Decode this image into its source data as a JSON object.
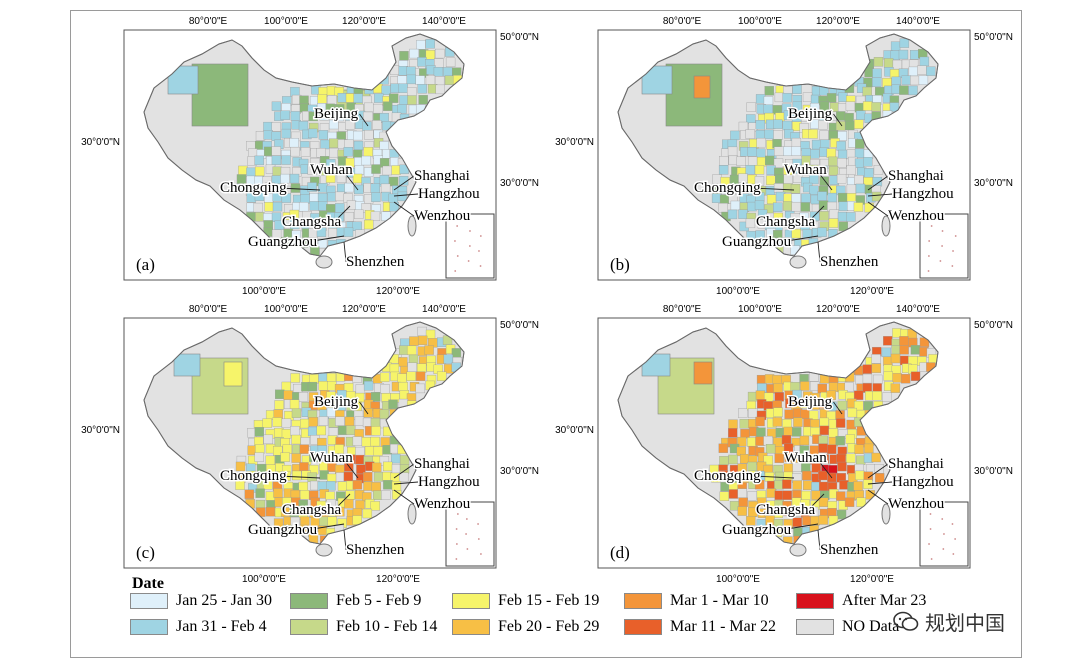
{
  "panels": [
    {
      "id": "a",
      "label": "(a)",
      "top_lon": [
        "80°0'0\"E",
        "100°0'0\"E",
        "120°0'0\"E",
        "140°0'0\"E"
      ],
      "bottom_lon": [
        "100°0'0\"E",
        "120°0'0\"E"
      ],
      "left_lat": "30°0'0\"N",
      "right_lat": [
        "50°0'0\"N",
        "30°0'0\"N"
      ]
    },
    {
      "id": "b",
      "label": "(b)",
      "top_lon": [
        "80°0'0\"E",
        "100°0'0\"E",
        "120°0'0\"E",
        "140°0'0\"E"
      ],
      "bottom_lon": [
        "100°0'0\"E",
        "120°0'0\"E"
      ],
      "left_lat": "30°0'0\"N",
      "right_lat": [
        "50°0'0\"N",
        "30°0'0\"N"
      ]
    },
    {
      "id": "c",
      "label": "(c)",
      "top_lon": [
        "80°0'0\"E",
        "100°0'0\"E",
        "120°0'0\"E",
        "140°0'0\"E"
      ],
      "bottom_lon": [
        "100°0'0\"E",
        "120°0'0\"E"
      ],
      "left_lat": "30°0'0\"N",
      "right_lat": [
        "50°0'0\"N",
        "30°0'0\"N"
      ]
    },
    {
      "id": "d",
      "label": "(d)",
      "top_lon": [
        "80°0'0\"E",
        "100°0'0\"E",
        "120°0'0\"E",
        "140°0'0\"E"
      ],
      "bottom_lon": [
        "100°0'0\"E",
        "120°0'0\"E"
      ],
      "left_lat": "30°0'0\"N",
      "right_lat": [
        "50°0'0\"N",
        "30°0'0\"N"
      ]
    }
  ],
  "cities": [
    "Beijing",
    "Wuhan",
    "Shanghai",
    "Chongqing",
    "Hangzhou",
    "Wenzhou",
    "Changsha",
    "Guangzhou",
    "Shenzhen"
  ],
  "legend": {
    "title": "Date",
    "items": [
      {
        "label": "Jan 25 - Jan 30",
        "color": "#dff0fa"
      },
      {
        "label": "Jan 31 - Feb 4",
        "color": "#9fd4e3"
      },
      {
        "label": "Feb 5 - Feb 9",
        "color": "#8cb87a"
      },
      {
        "label": "Feb 10 - Feb 14",
        "color": "#c6d98a"
      },
      {
        "label": "Feb 15 - Feb 19",
        "color": "#f6f46a"
      },
      {
        "label": "Feb 20 - Feb 29",
        "color": "#f7bf45"
      },
      {
        "label": "Mar 1  - Mar 10",
        "color": "#f3953a"
      },
      {
        "label": "Mar 11 - Mar 22",
        "color": "#e8602a"
      },
      {
        "label": "After Mar 23",
        "color": "#d8121c"
      },
      {
        "label": "NO Data",
        "color": "#e2e2e2"
      }
    ]
  },
  "watermark": {
    "text": "规划中国",
    "icon": "wechat-icon"
  },
  "colors": {
    "border": "#9a9a9a",
    "no_data": "#e2e2e2",
    "outline": "#7a7a7a"
  }
}
